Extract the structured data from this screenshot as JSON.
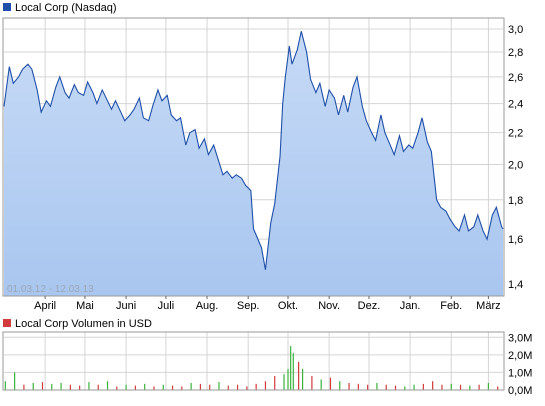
{
  "colors": {
    "price_line": "#1f4fa8",
    "price_fill_top": "#c6daf6",
    "price_fill_bottom": "#a9c6ef",
    "grid": "#d4d4d4",
    "axis": "#666666",
    "vol_up": "#3bb33b",
    "vol_down": "#d23b3b",
    "legend_price": "#1f4fa8",
    "legend_volume": "#d23b3b"
  },
  "chart_data": [
    {
      "type": "area",
      "legend": "Local Corp (Nasdaq)",
      "range_label": "01.03.12 - 12.03.13",
      "ylim": [
        1.35,
        3.1
      ],
      "yscale": "log",
      "yticks": [
        1.4,
        1.6,
        1.8,
        2.0,
        2.2,
        2.4,
        2.6,
        2.8,
        3.0
      ],
      "ytick_labels": [
        "1,4",
        "1,6",
        "1,8",
        "2,0",
        "2,2",
        "2,4",
        "2,6",
        "2,8",
        "3,0"
      ],
      "x_start": "2012-03-01",
      "x_end": "2013-03-12",
      "xticks": [
        "2012-04-01",
        "2012-05-01",
        "2012-06-01",
        "2012-07-01",
        "2012-08-01",
        "2012-09-01",
        "2012-10-01",
        "2012-11-01",
        "2012-12-01",
        "2013-01-01",
        "2013-02-01",
        "2013-03-01"
      ],
      "xtick_labels": [
        "April",
        "Mai",
        "Juni",
        "Juli",
        "Aug.",
        "Sep.",
        "Okt.",
        "Nov.",
        "Dez.",
        "Jan.",
        "Feb.",
        "März"
      ],
      "grid": true,
      "series": [
        {
          "x": [
            "2012-03-01",
            "2012-03-05",
            "2012-03-08",
            "2012-03-12",
            "2012-03-15",
            "2012-03-19",
            "2012-03-22",
            "2012-03-26",
            "2012-03-29",
            "2012-04-02",
            "2012-04-05",
            "2012-04-09",
            "2012-04-12",
            "2012-04-16",
            "2012-04-19",
            "2012-04-23",
            "2012-04-26",
            "2012-04-30",
            "2012-05-03",
            "2012-05-07",
            "2012-05-10",
            "2012-05-14",
            "2012-05-17",
            "2012-05-21",
            "2012-05-24",
            "2012-05-28",
            "2012-05-31",
            "2012-06-04",
            "2012-06-07",
            "2012-06-11",
            "2012-06-14",
            "2012-06-18",
            "2012-06-21",
            "2012-06-25",
            "2012-06-28",
            "2012-07-02",
            "2012-07-05",
            "2012-07-09",
            "2012-07-12",
            "2012-07-16",
            "2012-07-19",
            "2012-07-23",
            "2012-07-26",
            "2012-07-30",
            "2012-08-02",
            "2012-08-06",
            "2012-08-09",
            "2012-08-13",
            "2012-08-16",
            "2012-08-20",
            "2012-08-23",
            "2012-08-27",
            "2012-08-30",
            "2012-09-03",
            "2012-09-05",
            "2012-09-07",
            "2012-09-11",
            "2012-09-14",
            "2012-09-18",
            "2012-09-21",
            "2012-09-25",
            "2012-09-27",
            "2012-09-29",
            "2012-10-02",
            "2012-10-04",
            "2012-10-08",
            "2012-10-11",
            "2012-10-15",
            "2012-10-18",
            "2012-10-22",
            "2012-10-25",
            "2012-10-29",
            "2012-11-01",
            "2012-11-05",
            "2012-11-08",
            "2012-11-12",
            "2012-11-15",
            "2012-11-19",
            "2012-11-22",
            "2012-11-26",
            "2012-11-29",
            "2012-12-03",
            "2012-12-06",
            "2012-12-10",
            "2012-12-13",
            "2012-12-17",
            "2012-12-20",
            "2012-12-24",
            "2012-12-27",
            "2012-12-31",
            "2013-01-03",
            "2013-01-07",
            "2013-01-10",
            "2013-01-14",
            "2013-01-17",
            "2013-01-21",
            "2013-01-24",
            "2013-01-28",
            "2013-01-31",
            "2013-02-04",
            "2013-02-07",
            "2013-02-11",
            "2013-02-14",
            "2013-02-18",
            "2013-02-21",
            "2013-02-25",
            "2013-02-28",
            "2013-03-04",
            "2013-03-07",
            "2013-03-11",
            "2013-03-12"
          ],
          "values": [
            2.38,
            2.68,
            2.55,
            2.6,
            2.66,
            2.7,
            2.66,
            2.5,
            2.34,
            2.42,
            2.38,
            2.52,
            2.6,
            2.48,
            2.44,
            2.54,
            2.48,
            2.46,
            2.56,
            2.48,
            2.4,
            2.5,
            2.44,
            2.36,
            2.42,
            2.34,
            2.28,
            2.32,
            2.36,
            2.44,
            2.3,
            2.28,
            2.38,
            2.5,
            2.42,
            2.46,
            2.32,
            2.28,
            2.3,
            2.12,
            2.2,
            2.22,
            2.1,
            2.16,
            2.06,
            2.12,
            2.04,
            1.94,
            1.96,
            1.92,
            1.94,
            1.92,
            1.88,
            1.85,
            1.65,
            1.62,
            1.56,
            1.46,
            1.68,
            1.78,
            2.05,
            2.4,
            2.6,
            2.85,
            2.7,
            2.82,
            2.98,
            2.8,
            2.58,
            2.48,
            2.55,
            2.38,
            2.5,
            2.44,
            2.32,
            2.46,
            2.34,
            2.52,
            2.6,
            2.38,
            2.28,
            2.2,
            2.15,
            2.32,
            2.2,
            2.12,
            2.06,
            2.18,
            2.08,
            2.12,
            2.1,
            2.2,
            2.3,
            2.14,
            2.08,
            1.8,
            1.76,
            1.74,
            1.7,
            1.66,
            1.64,
            1.72,
            1.64,
            1.66,
            1.72,
            1.64,
            1.6,
            1.72,
            1.76,
            1.66,
            1.65
          ]
        }
      ]
    },
    {
      "type": "bar",
      "legend": "Local Corp Volumen in USD",
      "ylim": [
        0,
        3.3
      ],
      "yticks": [
        0,
        1,
        2,
        3
      ],
      "ytick_labels": [
        "0,0M",
        "1,0M",
        "2,0M",
        "3,0M"
      ],
      "x_start": "2012-03-01",
      "x_end": "2013-03-12",
      "grid": true,
      "series": [
        {
          "x": [
            "2012-03-02",
            "2012-03-09",
            "2012-03-16",
            "2012-03-23",
            "2012-03-30",
            "2012-04-06",
            "2012-04-13",
            "2012-04-20",
            "2012-04-27",
            "2012-05-04",
            "2012-05-11",
            "2012-05-18",
            "2012-05-25",
            "2012-06-01",
            "2012-06-08",
            "2012-06-15",
            "2012-06-22",
            "2012-06-29",
            "2012-07-06",
            "2012-07-13",
            "2012-07-20",
            "2012-07-27",
            "2012-08-03",
            "2012-08-10",
            "2012-08-17",
            "2012-08-24",
            "2012-08-31",
            "2012-09-07",
            "2012-09-14",
            "2012-09-21",
            "2012-09-28",
            "2012-10-01",
            "2012-10-03",
            "2012-10-05",
            "2012-10-09",
            "2012-10-12",
            "2012-10-19",
            "2012-10-26",
            "2012-11-02",
            "2012-11-09",
            "2012-11-16",
            "2012-11-23",
            "2012-11-30",
            "2012-12-07",
            "2012-12-14",
            "2012-12-21",
            "2012-12-28",
            "2013-01-04",
            "2013-01-11",
            "2013-01-18",
            "2013-01-25",
            "2013-02-01",
            "2013-02-08",
            "2013-02-15",
            "2013-02-22",
            "2013-03-01",
            "2013-03-08"
          ],
          "values": [
            0.5,
            1.0,
            0.3,
            0.4,
            0.45,
            0.35,
            0.4,
            0.3,
            0.25,
            0.45,
            0.3,
            0.5,
            0.2,
            0.3,
            0.25,
            0.35,
            0.2,
            0.3,
            0.25,
            0.2,
            0.4,
            0.35,
            0.3,
            0.45,
            0.25,
            0.3,
            0.2,
            0.35,
            0.5,
            0.8,
            0.9,
            1.2,
            2.5,
            2.1,
            1.6,
            1.2,
            0.8,
            0.6,
            0.7,
            0.5,
            0.4,
            0.35,
            0.3,
            0.4,
            0.3,
            0.25,
            0.2,
            0.3,
            0.35,
            0.5,
            0.3,
            0.35,
            0.3,
            0.25,
            0.3,
            0.4,
            0.2
          ],
          "direction": [
            "up",
            "up",
            "down",
            "up",
            "down",
            "up",
            "up",
            "down",
            "down",
            "up",
            "down",
            "up",
            "down",
            "up",
            "down",
            "up",
            "down",
            "up",
            "down",
            "down",
            "up",
            "down",
            "down",
            "up",
            "down",
            "down",
            "down",
            "down",
            "down",
            "down",
            "up",
            "up",
            "up",
            "up",
            "down",
            "up",
            "down",
            "up",
            "down",
            "up",
            "down",
            "down",
            "down",
            "up",
            "down",
            "down",
            "up",
            "up",
            "down",
            "down",
            "down",
            "up",
            "down",
            "up",
            "down",
            "up",
            "down"
          ]
        }
      ]
    }
  ]
}
